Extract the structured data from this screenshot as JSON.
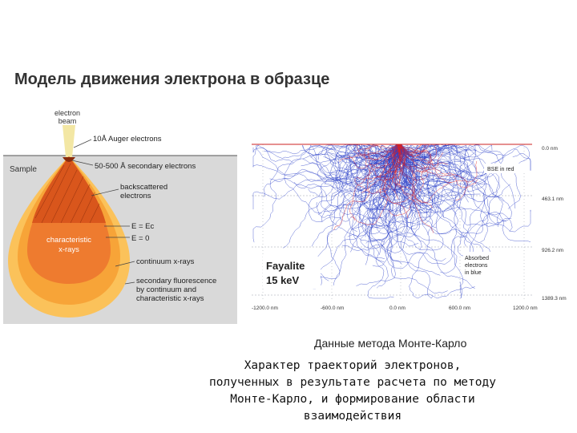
{
  "slide": {
    "title": "Модель движения электрона в образце",
    "caption_right": "Данные метода Монте-Карло",
    "footer_lines": [
      "Характер траекторий электронов,",
      "полученных в результате расчета по методу",
      "Монте-Карло, и формирование области",
      "взаимодействия"
    ]
  },
  "interaction_diagram": {
    "sample_label": "Sample",
    "beam_label_1": "electron",
    "beam_label_2": "beam",
    "region_labels": {
      "auger": "10Å Auger electrons",
      "secondary": "50-500 Å  secondary electrons",
      "backscattered_1": "backscattered",
      "backscattered_2": "electrons",
      "e_ec": "E = Ec",
      "e_zero": "E = 0",
      "continuum": "continuum x-rays",
      "fluor_1": "secondary fluorescence",
      "fluor_2": "by continuum and",
      "fluor_3": "characteristic x-rays"
    },
    "characteristic_1": "characteristic",
    "characteristic_2": "x-rays",
    "colors": {
      "sample_bg": "#d9d9d9",
      "fluorescence": "#fbc25a",
      "continuum": "#f7a438",
      "characteristic": "#ee7b2f",
      "backscatter": "#d9561c",
      "beam": "#f3e7a4"
    }
  },
  "monte_carlo": {
    "material": "Fayalite",
    "energy": "15 keV",
    "bse_label": "BSE in red",
    "absorbed_1": "Absorbed",
    "absorbed_2": "electrons",
    "absorbed_3": "in blue",
    "depth_labels": [
      "0.0 nm",
      "463.1 nm",
      "926.2 nm",
      "1389.3 nm"
    ],
    "x_labels": [
      "-1200.0 nm",
      "-600.0 nm",
      "0.0 nm",
      "600.0 nm",
      "1200.0 nm"
    ],
    "colors": {
      "absorbed": "#2a3fc8",
      "bse": "#e02020",
      "guide": "#9aa0ad"
    }
  }
}
